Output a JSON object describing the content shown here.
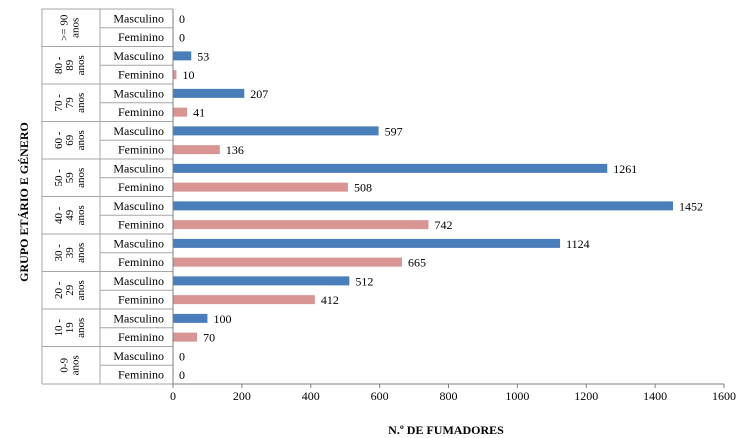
{
  "chart_data": {
    "type": "bar",
    "orientation": "horizontal",
    "xlabel": "N.º DE FUMADORES",
    "ylabel": "GRUPO ETÁRIO E GÉNERO",
    "xlim": [
      0,
      1600
    ],
    "x_ticks": [
      "0",
      "200",
      "400",
      "600",
      "800",
      "1000",
      "1200",
      "1400",
      "1600"
    ],
    "grid": false,
    "legend": "none",
    "colors": {
      "Masculino": "#4a7ebb",
      "Feminino": "#d99594"
    },
    "groups": [
      {
        "label": ">= 90 anos",
        "label_lines": [
          ">= 90",
          "anos"
        ],
        "rows": [
          {
            "gender": "Masculino",
            "value": 0
          },
          {
            "gender": "Feminino",
            "value": 0
          }
        ]
      },
      {
        "label": "80 - 89 anos",
        "label_lines": [
          "80 -",
          "89",
          "anos"
        ],
        "rows": [
          {
            "gender": "Masculino",
            "value": 53
          },
          {
            "gender": "Feminino",
            "value": 10
          }
        ]
      },
      {
        "label": "70 - 79 anos",
        "label_lines": [
          "70 -",
          "79",
          "anos"
        ],
        "rows": [
          {
            "gender": "Masculino",
            "value": 207
          },
          {
            "gender": "Feminino",
            "value": 41
          }
        ]
      },
      {
        "label": "60 - 69 anos",
        "label_lines": [
          "60 -",
          "69",
          "anos"
        ],
        "rows": [
          {
            "gender": "Masculino",
            "value": 597
          },
          {
            "gender": "Feminino",
            "value": 136
          }
        ]
      },
      {
        "label": "50 - 59 anos",
        "label_lines": [
          "50 -",
          "59",
          "anos"
        ],
        "rows": [
          {
            "gender": "Masculino",
            "value": 1261
          },
          {
            "gender": "Feminino",
            "value": 508
          }
        ]
      },
      {
        "label": "40 - 49 anos",
        "label_lines": [
          "40 -",
          "49",
          "anos"
        ],
        "rows": [
          {
            "gender": "Masculino",
            "value": 1452
          },
          {
            "gender": "Feminino",
            "value": 742
          }
        ]
      },
      {
        "label": "30 - 39 anos",
        "label_lines": [
          "30 -",
          "39",
          "anos"
        ],
        "rows": [
          {
            "gender": "Masculino",
            "value": 1124
          },
          {
            "gender": "Feminino",
            "value": 665
          }
        ]
      },
      {
        "label": "20 - 29 anos",
        "label_lines": [
          "20 -",
          "29",
          "anos"
        ],
        "rows": [
          {
            "gender": "Masculino",
            "value": 512
          },
          {
            "gender": "Feminino",
            "value": 412
          }
        ]
      },
      {
        "label": "10 - 19 anos",
        "label_lines": [
          "10 -",
          "19",
          "anos"
        ],
        "rows": [
          {
            "gender": "Masculino",
            "value": 100
          },
          {
            "gender": "Feminino",
            "value": 70
          }
        ]
      },
      {
        "label": "0-9 anos",
        "label_lines": [
          "0-9",
          "anos"
        ],
        "rows": [
          {
            "gender": "Masculino",
            "value": 0
          },
          {
            "gender": "Feminino",
            "value": 0
          }
        ]
      }
    ]
  }
}
